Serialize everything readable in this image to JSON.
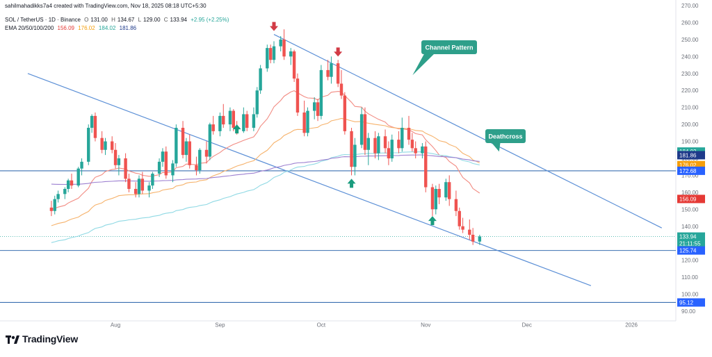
{
  "header": {
    "attribution": "sahilmahadikks7a4 created with TradingView.com, Nov 18, 2025 08:18 UTC+5:30",
    "symbol": "SOL / TetherUS · 1D · Binance",
    "ohlc": {
      "o_label": "O",
      "o": "131.00",
      "h_label": "H",
      "h": "134.67",
      "l_label": "L",
      "l": "129.00",
      "c_label": "C",
      "c": "133.94",
      "change": "+2.95 (+2.25%)"
    },
    "ema_label": "EMA 20/50/100/200",
    "ema_values": [
      "156.09",
      "176.02",
      "184.02",
      "181.86"
    ]
  },
  "brand": {
    "name": "TradingView"
  },
  "colors": {
    "candle_up": "#26a69a",
    "candle_down": "#ef5350",
    "ema20": "#f28b82",
    "ema50": "#f6b26b",
    "ema100": "#8fd9e4",
    "ema200": "#9c7fd0",
    "channel": "#5b8fd6",
    "level": "#3a6fb0",
    "arrow_up": "#1a9c7e",
    "arrow_down": "#d23b45",
    "callout": "#2e9f8a"
  },
  "chart_data": {
    "type": "candlestick",
    "x_ticks": [
      "Aug",
      "Sep",
      "Oct",
      "Nov",
      "Dec",
      "2026"
    ],
    "y_ticks": [
      "270.00",
      "260.00",
      "250.00",
      "240.00",
      "230.00",
      "220.00",
      "210.00",
      "200.00",
      "190.00",
      "180.00",
      "170.00",
      "160.00",
      "150.00",
      "140.00",
      "130.00",
      "120.00",
      "110.00",
      "100.00",
      "90.00"
    ],
    "ylim": [
      90,
      270
    ],
    "price_labels": [
      {
        "text": "184.02",
        "value": 184.02,
        "color": "#26a69a"
      },
      {
        "text": "181.86",
        "value": 181.86,
        "color": "#1e3a8a"
      },
      {
        "text": "176.02",
        "value": 176.02,
        "color": "#f59e0b"
      },
      {
        "text": "172.68",
        "value": 172.68,
        "color": "#2962ff"
      },
      {
        "text": "156.09",
        "value": 156.09,
        "color": "#e53935"
      },
      {
        "text": "133.94",
        "value": 133.94,
        "color": "#26a69a"
      },
      {
        "text": "21:11:55",
        "value": 129.9,
        "color": "#26a69a"
      },
      {
        "text": "125.74",
        "value": 125.74,
        "color": "#2962ff"
      },
      {
        "text": "95.12",
        "value": 95.12,
        "color": "#2962ff"
      }
    ],
    "horizontal_levels": [
      172.68,
      125.74,
      95.12
    ],
    "current_price": 133.94,
    "channel": {
      "upper": {
        "from": {
          "date": "2025-09-17",
          "price": 253
        },
        "to": {
          "date": "2026-01-10",
          "price": 139
        }
      },
      "lower": {
        "from": {
          "date": "2025-07-06",
          "price": 230
        },
        "to": {
          "date": "2025-12-20",
          "price": 105
        }
      }
    },
    "annotations": [
      {
        "text": "Channel Pattern"
      },
      {
        "text": "Deathcross"
      }
    ],
    "ema": [
      {
        "name": "EMA 20",
        "value": 156.09
      },
      {
        "name": "EMA 50",
        "value": 176.02
      },
      {
        "name": "EMA 100",
        "value": 184.02
      },
      {
        "name": "EMA 200",
        "value": 181.86
      }
    ],
    "candles": [
      [
        151,
        155,
        146,
        149
      ],
      [
        149,
        158,
        147,
        156
      ],
      [
        156,
        161,
        154,
        159
      ],
      [
        159,
        163,
        156,
        162
      ],
      [
        162,
        168,
        160,
        167
      ],
      [
        167,
        171,
        162,
        164
      ],
      [
        164,
        175,
        163,
        174
      ],
      [
        174,
        180,
        170,
        178
      ],
      [
        178,
        200,
        176,
        198
      ],
      [
        198,
        206,
        195,
        205
      ],
      [
        205,
        207,
        190,
        192
      ],
      [
        192,
        196,
        183,
        185
      ],
      [
        185,
        192,
        182,
        190
      ],
      [
        190,
        193,
        183,
        185
      ],
      [
        185,
        189,
        174,
        176
      ],
      [
        176,
        182,
        170,
        180
      ],
      [
        180,
        183,
        166,
        168
      ],
      [
        168,
        171,
        160,
        162
      ],
      [
        162,
        166,
        157,
        159
      ],
      [
        159,
        170,
        157,
        168
      ],
      [
        168,
        172,
        159,
        161
      ],
      [
        161,
        166,
        157,
        164
      ],
      [
        164,
        172,
        162,
        171
      ],
      [
        171,
        180,
        169,
        178
      ],
      [
        178,
        186,
        175,
        184
      ],
      [
        184,
        187,
        168,
        170
      ],
      [
        170,
        179,
        166,
        177
      ],
      [
        177,
        200,
        175,
        198
      ],
      [
        198,
        202,
        180,
        182
      ],
      [
        182,
        192,
        178,
        190
      ],
      [
        190,
        194,
        174,
        176
      ],
      [
        176,
        181,
        170,
        173
      ],
      [
        173,
        186,
        171,
        185
      ],
      [
        185,
        190,
        177,
        181
      ],
      [
        181,
        201,
        179,
        200
      ],
      [
        200,
        205,
        194,
        196
      ],
      [
        196,
        207,
        193,
        205
      ],
      [
        205,
        212,
        198,
        200
      ],
      [
        200,
        210,
        196,
        208
      ],
      [
        208,
        209,
        196,
        198
      ],
      [
        198,
        202,
        194,
        196
      ],
      [
        196,
        210,
        195,
        206
      ],
      [
        206,
        208,
        196,
        198
      ],
      [
        198,
        210,
        196,
        206
      ],
      [
        206,
        222,
        204,
        220
      ],
      [
        220,
        235,
        218,
        233
      ],
      [
        233,
        247,
        231,
        245
      ],
      [
        245,
        247,
        236,
        238
      ],
      [
        238,
        249,
        236,
        246
      ],
      [
        246,
        252,
        243,
        250
      ],
      [
        250,
        256,
        238,
        240
      ],
      [
        240,
        245,
        235,
        243
      ],
      [
        243,
        244,
        225,
        227
      ],
      [
        227,
        230,
        205,
        207
      ],
      [
        207,
        214,
        193,
        195
      ],
      [
        195,
        210,
        193,
        208
      ],
      [
        208,
        216,
        203,
        213
      ],
      [
        213,
        215,
        202,
        205
      ],
      [
        205,
        235,
        203,
        232
      ],
      [
        232,
        238,
        226,
        228
      ],
      [
        228,
        240,
        224,
        236
      ],
      [
        236,
        238,
        222,
        224
      ],
      [
        224,
        232,
        215,
        217
      ],
      [
        217,
        219,
        194,
        196
      ],
      [
        196,
        198,
        170,
        175
      ],
      [
        175,
        192,
        170,
        188
      ],
      [
        188,
        210,
        186,
        206
      ],
      [
        206,
        210,
        182,
        185
      ],
      [
        185,
        195,
        176,
        192
      ],
      [
        192,
        196,
        180,
        183
      ],
      [
        183,
        195,
        179,
        193
      ],
      [
        193,
        197,
        183,
        186
      ],
      [
        186,
        190,
        176,
        180
      ],
      [
        180,
        194,
        178,
        191
      ],
      [
        191,
        196,
        183,
        186
      ],
      [
        186,
        204,
        184,
        198
      ],
      [
        198,
        205,
        188,
        191
      ],
      [
        191,
        195,
        184,
        186
      ],
      [
        186,
        190,
        180,
        183
      ],
      [
        183,
        189,
        180,
        187
      ],
      [
        187,
        190,
        160,
        163
      ],
      [
        163,
        165,
        146,
        150
      ],
      [
        150,
        164,
        147,
        162
      ],
      [
        162,
        165,
        153,
        157
      ],
      [
        157,
        168,
        155,
        166
      ],
      [
        166,
        170,
        152,
        156
      ],
      [
        156,
        161,
        146,
        149
      ],
      [
        149,
        151,
        138,
        140
      ],
      [
        140,
        145,
        136,
        138
      ],
      [
        138,
        144,
        132,
        135
      ],
      [
        135,
        139,
        129,
        131
      ],
      [
        131,
        135,
        129,
        134
      ]
    ]
  }
}
